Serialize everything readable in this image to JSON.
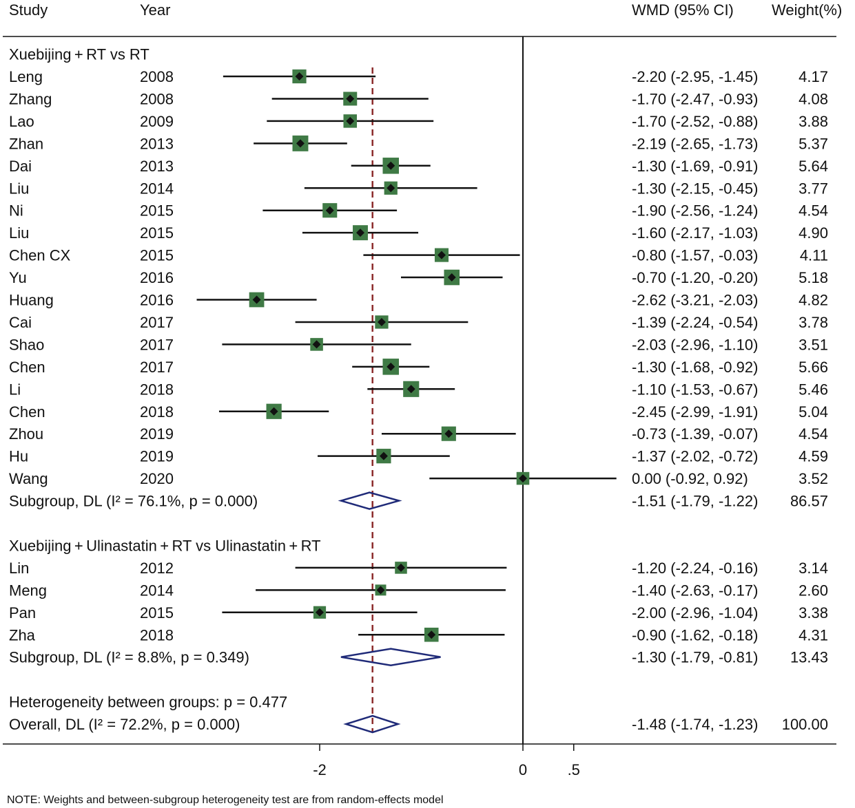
{
  "chart_data": {
    "type": "forest",
    "headers": {
      "study": "Study",
      "year": "Year",
      "effect": "WMD (95% CI)",
      "weight": "Weight(%)"
    },
    "x_ticks": [
      {
        "value": -2,
        "label": "-2"
      },
      {
        "value": 0,
        "label": "0"
      },
      {
        "value": 0.5,
        "label": ".5"
      }
    ],
    "xlim": [
      -3.25,
      0.92
    ],
    "null_line": 0,
    "overall_reference_line": -1.48,
    "groups": [
      {
        "title": "Xuebijing + RT vs RT",
        "studies": [
          {
            "study": "Leng",
            "year": "2008",
            "est": -2.2,
            "lo": -2.95,
            "hi": -1.45,
            "ci": "-2.20 (-2.95, -1.45)",
            "weight": "4.17"
          },
          {
            "study": "Zhang",
            "year": "2008",
            "est": -1.7,
            "lo": -2.47,
            "hi": -0.93,
            "ci": "-1.70 (-2.47, -0.93)",
            "weight": "4.08"
          },
          {
            "study": "Lao",
            "year": "2009",
            "est": -1.7,
            "lo": -2.52,
            "hi": -0.88,
            "ci": "-1.70 (-2.52, -0.88)",
            "weight": "3.88"
          },
          {
            "study": "Zhan",
            "year": "2013",
            "est": -2.19,
            "lo": -2.65,
            "hi": -1.73,
            "ci": "-2.19 (-2.65, -1.73)",
            "weight": "5.37"
          },
          {
            "study": "Dai",
            "year": "2013",
            "est": -1.3,
            "lo": -1.69,
            "hi": -0.91,
            "ci": "-1.30 (-1.69, -0.91)",
            "weight": "5.64"
          },
          {
            "study": "Liu",
            "year": "2014",
            "est": -1.3,
            "lo": -2.15,
            "hi": -0.45,
            "ci": "-1.30 (-2.15, -0.45)",
            "weight": "3.77"
          },
          {
            "study": "Ni",
            "year": "2015",
            "est": -1.9,
            "lo": -2.56,
            "hi": -1.24,
            "ci": "-1.90 (-2.56, -1.24)",
            "weight": "4.54"
          },
          {
            "study": "Liu",
            "year": "2015",
            "est": -1.6,
            "lo": -2.17,
            "hi": -1.03,
            "ci": "-1.60 (-2.17, -1.03)",
            "weight": "4.90"
          },
          {
            "study": "Chen CX",
            "year": "2015",
            "est": -0.8,
            "lo": -1.57,
            "hi": -0.03,
            "ci": "-0.80 (-1.57, -0.03)",
            "weight": "4.11"
          },
          {
            "study": "Yu",
            "year": "2016",
            "est": -0.7,
            "lo": -1.2,
            "hi": -0.2,
            "ci": "-0.70 (-1.20, -0.20)",
            "weight": "5.18"
          },
          {
            "study": "Huang",
            "year": "2016",
            "est": -2.62,
            "lo": -3.21,
            "hi": -2.03,
            "ci": "-2.62 (-3.21, -2.03)",
            "weight": "4.82"
          },
          {
            "study": "Cai",
            "year": "2017",
            "est": -1.39,
            "lo": -2.24,
            "hi": -0.54,
            "ci": "-1.39 (-2.24, -0.54)",
            "weight": "3.78"
          },
          {
            "study": "Shao",
            "year": "2017",
            "est": -2.03,
            "lo": -2.96,
            "hi": -1.1,
            "ci": "-2.03 (-2.96, -1.10)",
            "weight": "3.51"
          },
          {
            "study": "Chen",
            "year": "2017",
            "est": -1.3,
            "lo": -1.68,
            "hi": -0.92,
            "ci": "-1.30 (-1.68, -0.92)",
            "weight": "5.66"
          },
          {
            "study": "Li",
            "year": "2018",
            "est": -1.1,
            "lo": -1.53,
            "hi": -0.67,
            "ci": "-1.10 (-1.53, -0.67)",
            "weight": "5.46"
          },
          {
            "study": "Chen",
            "year": "2018",
            "est": -2.45,
            "lo": -2.99,
            "hi": -1.91,
            "ci": "-2.45 (-2.99, -1.91)",
            "weight": "5.04"
          },
          {
            "study": "Zhou",
            "year": "2019",
            "est": -0.73,
            "lo": -1.39,
            "hi": -0.07,
            "ci": "-0.73 (-1.39, -0.07)",
            "weight": "4.54"
          },
          {
            "study": "Hu",
            "year": "2019",
            "est": -1.37,
            "lo": -2.02,
            "hi": -0.72,
            "ci": "-1.37 (-2.02, -0.72)",
            "weight": "4.59"
          },
          {
            "study": "Wang",
            "year": "2020",
            "est": 0.0,
            "lo": -0.92,
            "hi": 0.92,
            "ci": "0.00 (-0.92, 0.92)",
            "weight": "3.52"
          }
        ],
        "subgroup": {
          "label": "Subgroup, DL (I² = 76.1%, p = 0.000)",
          "est": -1.51,
          "lo": -1.79,
          "hi": -1.22,
          "ci": "-1.51 (-1.79, -1.22)",
          "weight": "86.57"
        }
      },
      {
        "title": "Xuebijing + Ulinastatin + RT vs Ulinastatin + RT",
        "studies": [
          {
            "study": "Lin",
            "year": "2012",
            "est": -1.2,
            "lo": -2.24,
            "hi": -0.16,
            "ci": "-1.20 (-2.24, -0.16)",
            "weight": "3.14"
          },
          {
            "study": "Meng",
            "year": "2014",
            "est": -1.4,
            "lo": -2.63,
            "hi": -0.17,
            "ci": "-1.40 (-2.63, -0.17)",
            "weight": "2.60"
          },
          {
            "study": "Pan",
            "year": "2015",
            "est": -2.0,
            "lo": -2.96,
            "hi": -1.04,
            "ci": "-2.00 (-2.96, -1.04)",
            "weight": "3.38"
          },
          {
            "study": "Zha",
            "year": "2018",
            "est": -0.9,
            "lo": -1.62,
            "hi": -0.18,
            "ci": "-0.90 (-1.62, -0.18)",
            "weight": "4.31"
          }
        ],
        "subgroup": {
          "label": "Subgroup, DL (I² = 8.8%, p = 0.349)",
          "est": -1.3,
          "lo": -1.79,
          "hi": -0.81,
          "ci": "-1.30 (-1.79, -0.81)",
          "weight": "13.43"
        }
      }
    ],
    "heterogeneity_text": "Heterogeneity between groups: p = 0.477",
    "overall": {
      "label": "Overall, DL (I² = 72.2%, p = 0.000)",
      "est": -1.48,
      "lo": -1.74,
      "hi": -1.23,
      "ci": "-1.48 (-1.74, -1.23)",
      "weight": "100.00"
    },
    "note": "NOTE: Weights and between-subgroup heterogeneity test are from random-effects model",
    "colors": {
      "box_fill": "#3f7a45",
      "point": "#111111",
      "ci_line": "#111111",
      "diamond": "#1f2a78",
      "reference_line": "#8b2a2a",
      "axis": "#111111"
    }
  }
}
